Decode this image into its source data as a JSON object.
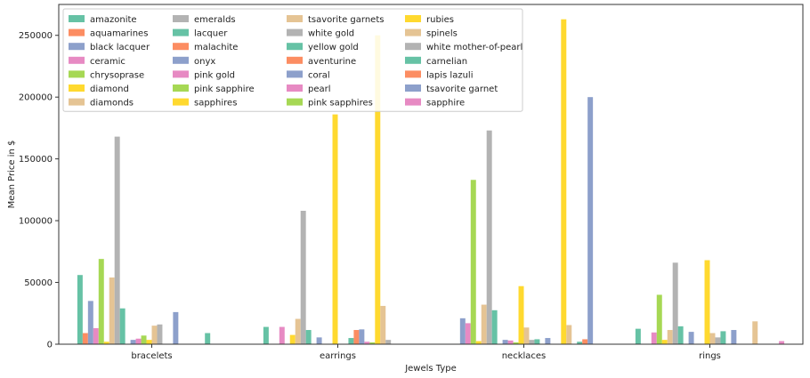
{
  "chart_data": {
    "type": "bar",
    "title": "",
    "xlabel": "Jewels Type",
    "ylabel": "Mean Price in $",
    "ylim": [
      0,
      275000
    ],
    "yticks": [
      0,
      50000,
      100000,
      150000,
      200000,
      250000
    ],
    "grid": false,
    "legend_position": "top-left",
    "categories": [
      "bracelets",
      "earrings",
      "necklaces",
      "rings"
    ],
    "series": [
      {
        "name": "amazonite",
        "color": "#66c2a5",
        "values": [
          56000,
          14000,
          0,
          12500
        ]
      },
      {
        "name": "aquamarines",
        "color": "#fc8d62",
        "values": [
          9000,
          0,
          0,
          0
        ]
      },
      {
        "name": "black lacquer",
        "color": "#8da0cb",
        "values": [
          35000,
          0,
          21000,
          0
        ]
      },
      {
        "name": "ceramic",
        "color": "#e78ac3",
        "values": [
          13000,
          14000,
          17000,
          9500
        ]
      },
      {
        "name": "chrysoprase",
        "color": "#a6d854",
        "values": [
          69000,
          0,
          133000,
          40000
        ]
      },
      {
        "name": "diamond",
        "color": "#ffd92f",
        "values": [
          2000,
          7500,
          2500,
          3500
        ]
      },
      {
        "name": "diamonds",
        "color": "#e5c494",
        "values": [
          54000,
          20500,
          32000,
          11500
        ]
      },
      {
        "name": "emeralds",
        "color": "#b3b3b3",
        "values": [
          168000,
          108000,
          173000,
          66000
        ]
      },
      {
        "name": "lacquer",
        "color": "#66c2a5",
        "values": [
          29000,
          11500,
          27500,
          14500
        ]
      },
      {
        "name": "malachite",
        "color": "#fc8d62",
        "values": [
          0,
          0,
          0,
          0
        ]
      },
      {
        "name": "onyx",
        "color": "#8da0cb",
        "values": [
          3500,
          5500,
          3500,
          10000
        ]
      },
      {
        "name": "pink gold",
        "color": "#e78ac3",
        "values": [
          4500,
          0,
          3000,
          0
        ]
      },
      {
        "name": "pink sapphire",
        "color": "#a6d854",
        "values": [
          7000,
          0,
          1500,
          0
        ]
      },
      {
        "name": "sapphires",
        "color": "#ffd92f",
        "values": [
          3500,
          186000,
          47000,
          68000
        ]
      },
      {
        "name": "tsavorite garnets",
        "color": "#e5c494",
        "values": [
          15000,
          0,
          13500,
          9000
        ]
      },
      {
        "name": "white gold",
        "color": "#b3b3b3",
        "values": [
          16000,
          0,
          3500,
          5500
        ]
      },
      {
        "name": "yellow gold",
        "color": "#66c2a5",
        "values": [
          0,
          5000,
          4000,
          10500
        ]
      },
      {
        "name": "aventurine",
        "color": "#fc8d62",
        "values": [
          0,
          11500,
          0,
          0
        ]
      },
      {
        "name": "coral",
        "color": "#8da0cb",
        "values": [
          26000,
          12000,
          5000,
          11500
        ]
      },
      {
        "name": "pearl",
        "color": "#e78ac3",
        "values": [
          0,
          2000,
          0,
          0
        ]
      },
      {
        "name": "pink sapphires",
        "color": "#a6d854",
        "values": [
          0,
          1500,
          0,
          0
        ]
      },
      {
        "name": "rubies",
        "color": "#ffd92f",
        "values": [
          0,
          250000,
          263000,
          0
        ]
      },
      {
        "name": "spinels",
        "color": "#e5c494",
        "values": [
          0,
          31000,
          15500,
          18500
        ]
      },
      {
        "name": "white mother-of-pearl",
        "color": "#b3b3b3",
        "values": [
          0,
          3500,
          0,
          0
        ]
      },
      {
        "name": "carnelian",
        "color": "#66c2a5",
        "values": [
          9000,
          0,
          2000,
          0
        ]
      },
      {
        "name": "lapis lazuli",
        "color": "#fc8d62",
        "values": [
          0,
          0,
          4000,
          0
        ]
      },
      {
        "name": "tsavorite garnet",
        "color": "#8da0cb",
        "values": [
          0,
          0,
          200000,
          0
        ]
      },
      {
        "name": "sapphire",
        "color": "#e78ac3",
        "values": [
          0,
          0,
          0,
          2500
        ]
      }
    ]
  }
}
